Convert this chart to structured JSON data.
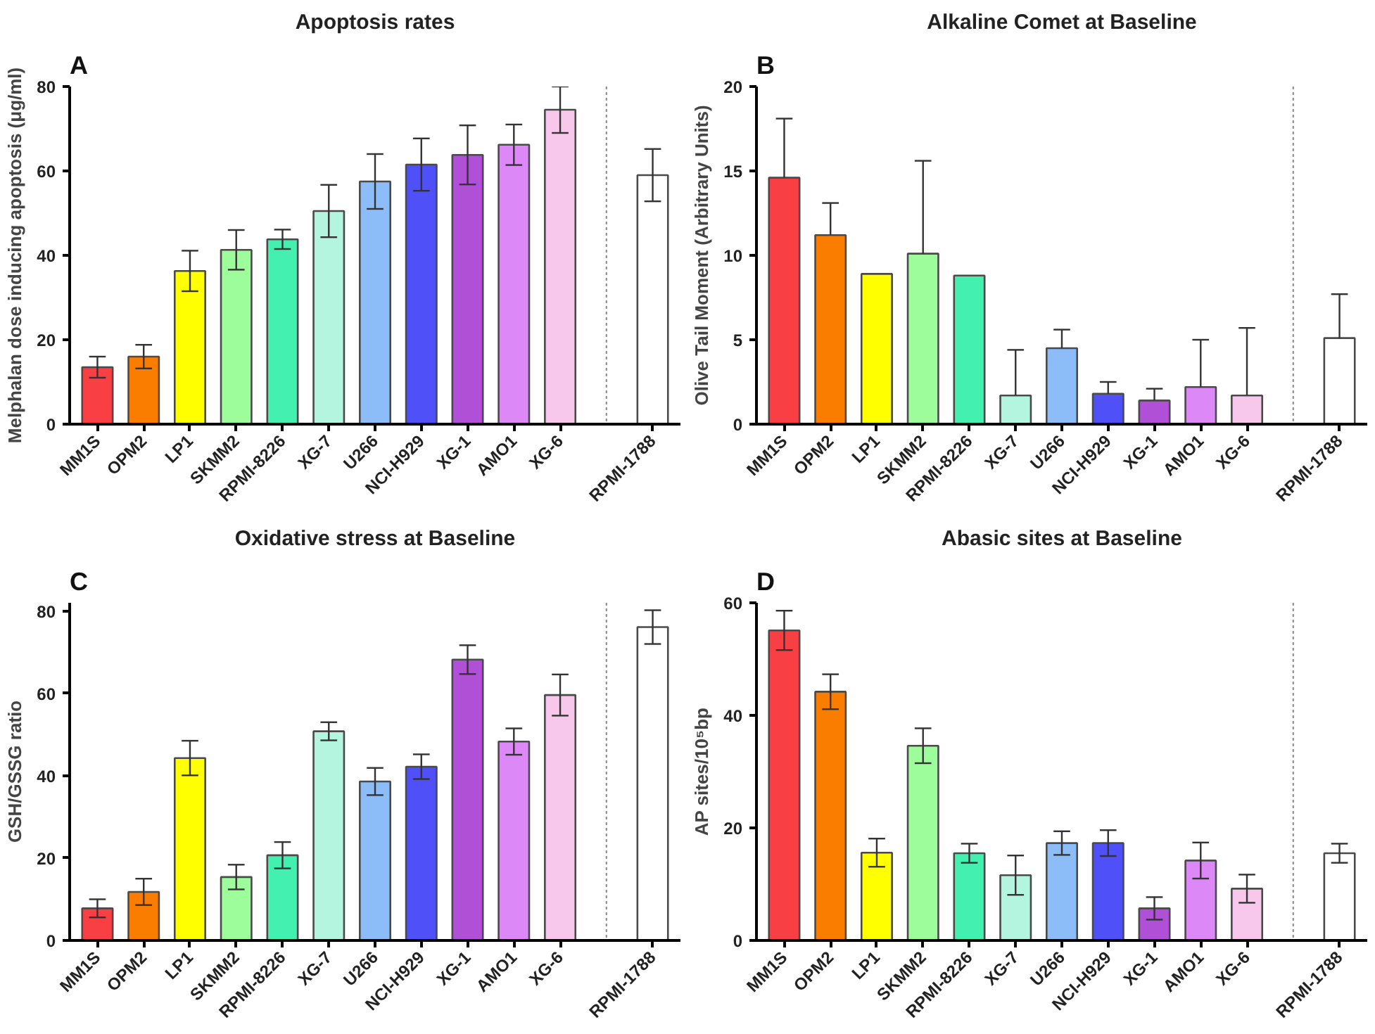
{
  "chart_data": [
    {
      "type": "bar",
      "title": "Apoptosis rates",
      "annotations": [
        "A"
      ],
      "ylabel": "Melphalan dose inducing apoptosis (μg/ml)",
      "categories": [
        "MM1S",
        "OPM2",
        "LP1",
        "SKMM2",
        "RPMI-8226",
        "XG-7",
        "U266",
        "NCI-H929",
        "XG-1",
        "AMO1",
        "XG-6",
        null,
        "RPMI-1788"
      ],
      "values": [
        13.5,
        16,
        36.3,
        41.3,
        43.8,
        50.5,
        57.5,
        61.5,
        63.8,
        66.2,
        74.5,
        null,
        59
      ],
      "errors": [
        2.5,
        2.8,
        4.8,
        4.7,
        2.3,
        6.2,
        6.5,
        6.2,
        7,
        4.8,
        5.5,
        null,
        6.2
      ],
      "colors": [
        "#f83f44",
        "#fb7d00",
        "#ffff00",
        "#9dfd9a",
        "#43f0b0",
        "#b3f5df",
        "#8dbdf8",
        "#5050f8",
        "#b050d6",
        "#dc88f6",
        "#f8c8ec",
        "#ffffff",
        "#ffffff"
      ],
      "ylim": [
        0,
        80
      ],
      "yticks": [
        0,
        20,
        40,
        60,
        80
      ]
    },
    {
      "type": "bar",
      "title": "Alkaline Comet at Baseline",
      "annotations": [
        "B"
      ],
      "ylabel": "Olive Tail Moment (Arbitrary Units)",
      "categories": [
        "MM1S",
        "OPM2",
        "LP1",
        "SKMM2",
        "RPMI-8226",
        "XG-7",
        "U266",
        "NCI-H929",
        "XG-1",
        "AMO1",
        "XG-6",
        null,
        "RPMI-1788"
      ],
      "values": [
        14.6,
        11.2,
        8.9,
        10.1,
        8.8,
        1.7,
        4.5,
        1.8,
        1.4,
        2.2,
        1.7,
        null,
        5.1
      ],
      "errors": [
        [
          14.6,
          18.1
        ],
        [
          11.2,
          13.1
        ],
        null,
        [
          10.1,
          15.6
        ],
        null,
        [
          1.7,
          4.4
        ],
        [
          4.5,
          5.6
        ],
        [
          1.8,
          2.5
        ],
        [
          1.4,
          2.1
        ],
        [
          2.2,
          5
        ],
        [
          1.7,
          5.7
        ],
        null,
        [
          5.1,
          7.7
        ]
      ],
      "colors": [
        "#f83f44",
        "#fb7d00",
        "#ffff00",
        "#9dfd9a",
        "#43f0b0",
        "#b3f5df",
        "#8dbdf8",
        "#5050f8",
        "#b050d6",
        "#dc88f6",
        "#f8c8ec",
        "#ffffff",
        "#ffffff"
      ],
      "ylim": [
        0,
        20
      ],
      "yticks": [
        0,
        5,
        10,
        15,
        20
      ]
    },
    {
      "type": "bar",
      "title": "Oxidative stress at Baseline",
      "annotations": [
        "C"
      ],
      "ylabel": "GSH/GSSG ratio",
      "categories": [
        "MM1S",
        "OPM2",
        "LP1",
        "SKMM2",
        "RPMI-8226",
        "XG-7",
        "U266",
        "NCI-H929",
        "XG-1",
        "AMO1",
        "XG-6",
        null,
        "RPMI-1788"
      ],
      "values": [
        7.8,
        11.8,
        44.3,
        15.4,
        20.7,
        50.8,
        38.6,
        42.2,
        68.2,
        48.3,
        59.6,
        null,
        76.1
      ],
      "errors": [
        2.2,
        3.2,
        4.2,
        3,
        3.2,
        2.2,
        3.3,
        3,
        3.5,
        3.2,
        5,
        null,
        4.1
      ],
      "colors": [
        "#f83f44",
        "#fb7d00",
        "#ffff00",
        "#9dfd9a",
        "#43f0b0",
        "#b3f5df",
        "#8dbdf8",
        "#5050f8",
        "#b050d6",
        "#dc88f6",
        "#f8c8ec",
        "#ffffff",
        "#ffffff"
      ],
      "ylim": [
        0,
        82
      ],
      "yticks": [
        0,
        20,
        40,
        60,
        80
      ]
    },
    {
      "type": "bar",
      "title": "Abasic sites at Baseline",
      "annotations": [
        "D"
      ],
      "ylabel": "AP sites/10⁵bp",
      "categories": [
        "MM1S",
        "OPM2",
        "LP1",
        "SKMM2",
        "RPMI-8226",
        "XG-7",
        "U266",
        "NCI-H929",
        "XG-1",
        "AMO1",
        "XG-6",
        null,
        "RPMI-1788"
      ],
      "values": [
        55.1,
        44.2,
        15.6,
        34.6,
        15.5,
        11.6,
        17.3,
        17.3,
        5.7,
        14.2,
        9.2,
        null,
        15.5
      ],
      "errors": [
        3.5,
        3.1,
        2.5,
        3.1,
        1.7,
        3.5,
        2.1,
        2.3,
        2,
        3.2,
        2.5,
        null,
        1.7
      ],
      "colors": [
        "#f83f44",
        "#fb7d00",
        "#ffff00",
        "#9dfd9a",
        "#43f0b0",
        "#b3f5df",
        "#8dbdf8",
        "#5050f8",
        "#b050d6",
        "#dc88f6",
        "#f8c8ec",
        "#ffffff",
        "#ffffff"
      ],
      "ylim": [
        0,
        60
      ],
      "yticks": [
        0,
        20,
        40,
        60
      ]
    }
  ]
}
